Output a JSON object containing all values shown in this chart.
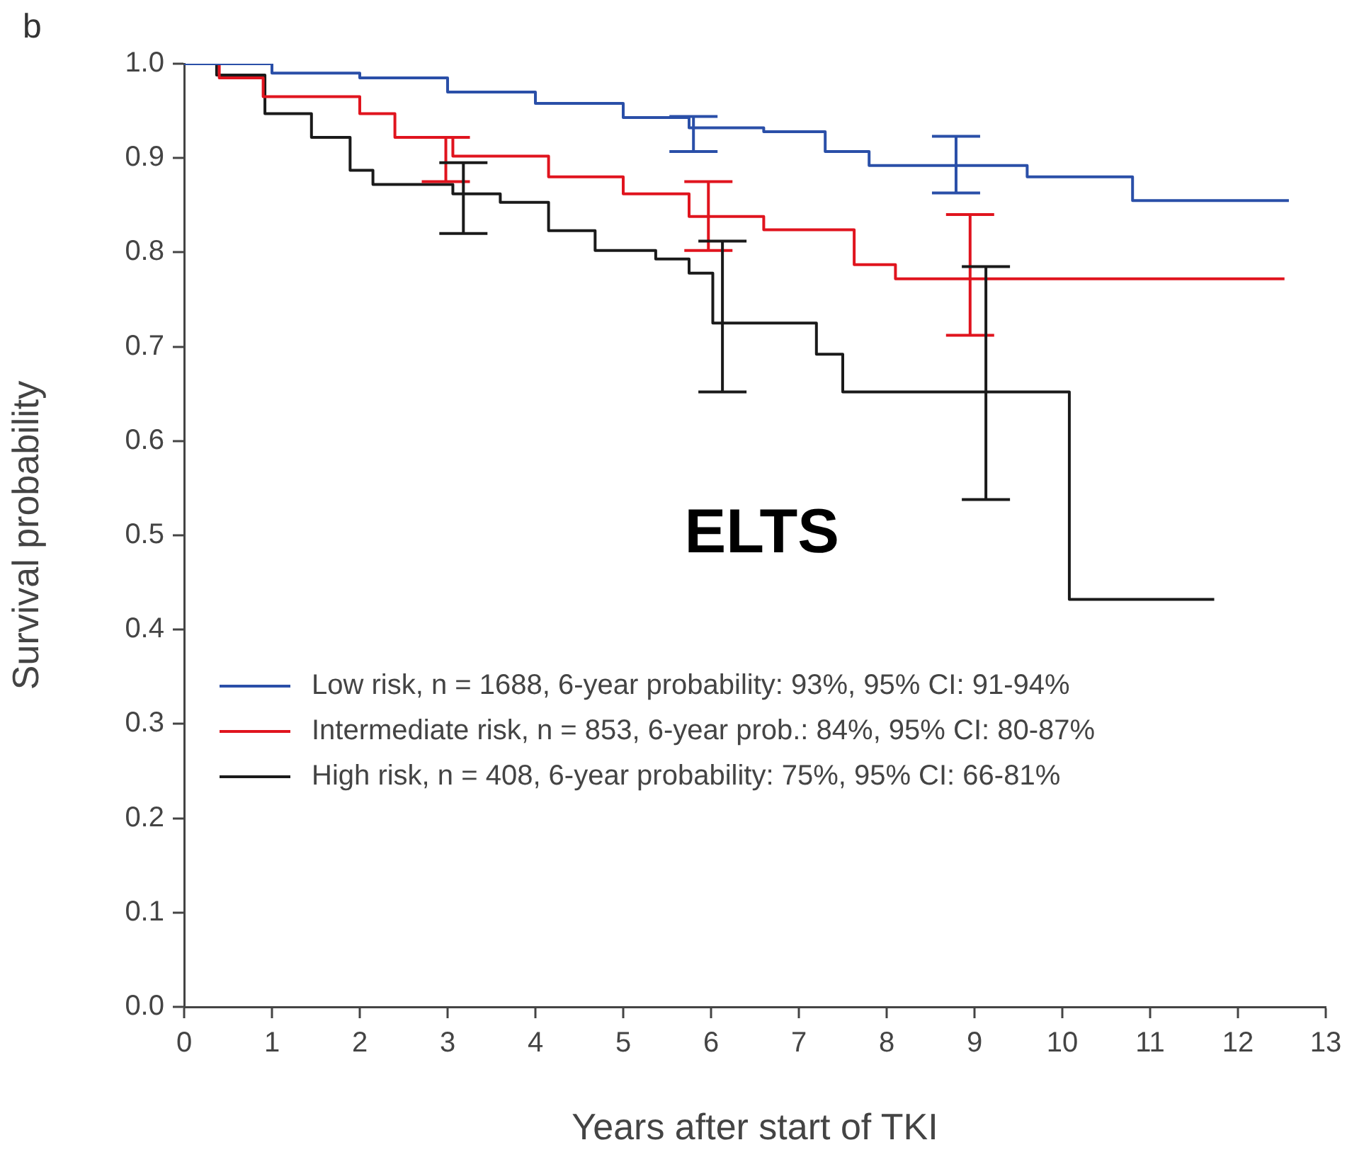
{
  "chart_data": {
    "type": "step",
    "xlabel": "Years after start of TKI",
    "ylabel": "Survival probability",
    "annotations": [
      "b",
      "ELTS"
    ],
    "xlim": [
      0,
      13
    ],
    "xticks": [
      0,
      1,
      2,
      3,
      4,
      5,
      6,
      7,
      8,
      9,
      10,
      11,
      12,
      13
    ],
    "ylim": [
      0,
      1
    ],
    "yticks": [
      {
        "value": 0,
        "label": "0.0"
      },
      {
        "value": 0.1,
        "label": "0.1"
      },
      {
        "value": 0.2,
        "label": "0.2"
      },
      {
        "value": 0.3,
        "label": "0.3"
      },
      {
        "value": 0.4,
        "label": "0.4"
      },
      {
        "value": 0.5,
        "label": "0.5"
      },
      {
        "value": 0.6,
        "label": "0.6"
      },
      {
        "value": 0.7,
        "label": "0.7"
      },
      {
        "value": 0.8,
        "label": "0.8"
      },
      {
        "value": 0.9,
        "label": "0.9"
      },
      {
        "value": 1,
        "label": "1.0"
      }
    ],
    "grid": false,
    "legend": "left",
    "series": [
      {
        "name": "Low risk, n = 1688, 6-year probability: 93%, 95% CI: 91-94%",
        "color": "#2a4fa8",
        "x": [
          0,
          1,
          2,
          3,
          4,
          5,
          5.75,
          5.8,
          6.6,
          7.3,
          7.8,
          8.79,
          9.6,
          10.8,
          12.58
        ],
        "values": [
          1,
          0.99,
          0.985,
          0.97,
          0.958,
          0.943,
          0.932,
          0.932,
          0.928,
          0.907,
          0.892,
          0.892,
          0.88,
          0.855,
          0.855
        ],
        "errors": [
          null,
          null,
          null,
          null,
          null,
          null,
          null,
          [
            0.907,
            0.944
          ],
          null,
          null,
          null,
          [
            0.863,
            0.923
          ],
          null,
          null,
          null
        ]
      },
      {
        "name": "Intermediate risk, n = 853, 6-year prob.: 84%, 95% CI: 80-87%",
        "color": "#e0141e",
        "x": [
          0,
          0.4,
          0.9,
          2,
          2.4,
          2.98,
          3.06,
          4.15,
          5,
          5.75,
          5.97,
          6.6,
          7.63,
          8.1,
          8.95,
          12.53
        ],
        "values": [
          1,
          0.985,
          0.965,
          0.947,
          0.922,
          0.922,
          0.902,
          0.88,
          0.862,
          0.838,
          0.838,
          0.824,
          0.787,
          0.772,
          0.772,
          0.772
        ],
        "errors": [
          null,
          null,
          null,
          null,
          null,
          [
            0.875,
            0.922
          ],
          null,
          null,
          null,
          null,
          [
            0.802,
            0.875
          ],
          null,
          null,
          null,
          [
            0.712,
            0.84
          ],
          null
        ]
      },
      {
        "name": "High risk, n = 408, 6-year probability: 75%, 95% CI: 66-81%",
        "color": "#1a1a1a",
        "x": [
          0,
          0.37,
          0.92,
          1.45,
          1.89,
          2.15,
          3.06,
          3.18,
          3.6,
          4.15,
          4.68,
          5.37,
          5.75,
          6.02,
          6.13,
          7.2,
          7.5,
          9.13,
          10.08,
          11.73
        ],
        "values": [
          1,
          0.988,
          0.947,
          0.922,
          0.887,
          0.872,
          0.862,
          0.862,
          0.853,
          0.823,
          0.802,
          0.793,
          0.778,
          0.725,
          0.725,
          0.692,
          0.652,
          0.652,
          0.432,
          0.432
        ],
        "errors": [
          null,
          null,
          null,
          null,
          null,
          null,
          null,
          [
            0.82,
            0.895
          ],
          null,
          null,
          null,
          null,
          null,
          null,
          [
            0.652,
            0.812
          ],
          null,
          null,
          [
            0.538,
            0.785
          ],
          null,
          null
        ]
      }
    ]
  }
}
